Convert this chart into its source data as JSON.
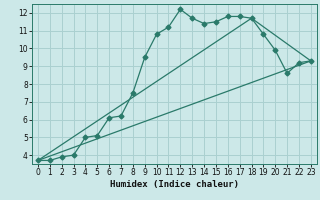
{
  "title": "",
  "xlabel": "Humidex (Indice chaleur)",
  "ylabel": "",
  "background_color": "#cce8e8",
  "grid_color": "#aad0d0",
  "line_color": "#2a7a6a",
  "spine_color": "#2a7a6a",
  "xlim": [
    -0.5,
    23.5
  ],
  "ylim": [
    3.5,
    12.5
  ],
  "xticks": [
    0,
    1,
    2,
    3,
    4,
    5,
    6,
    7,
    8,
    9,
    10,
    11,
    12,
    13,
    14,
    15,
    16,
    17,
    18,
    19,
    20,
    21,
    22,
    23
  ],
  "yticks": [
    4,
    5,
    6,
    7,
    8,
    9,
    10,
    11,
    12
  ],
  "line1_x": [
    0,
    1,
    2,
    3,
    4,
    5,
    6,
    7,
    8,
    9,
    10,
    11,
    12,
    13,
    14,
    15,
    16,
    17,
    18,
    19,
    20,
    21,
    22,
    23
  ],
  "line1_y": [
    3.7,
    3.7,
    3.9,
    4.0,
    5.0,
    5.1,
    6.1,
    6.2,
    7.5,
    9.5,
    10.8,
    11.2,
    12.2,
    11.7,
    11.4,
    11.5,
    11.8,
    11.8,
    11.7,
    10.8,
    9.9,
    8.6,
    9.2,
    9.3
  ],
  "line3_x": [
    0,
    23
  ],
  "line3_y": [
    3.7,
    9.3
  ],
  "line4_x": [
    0,
    18,
    23
  ],
  "line4_y": [
    3.7,
    11.7,
    9.3
  ]
}
